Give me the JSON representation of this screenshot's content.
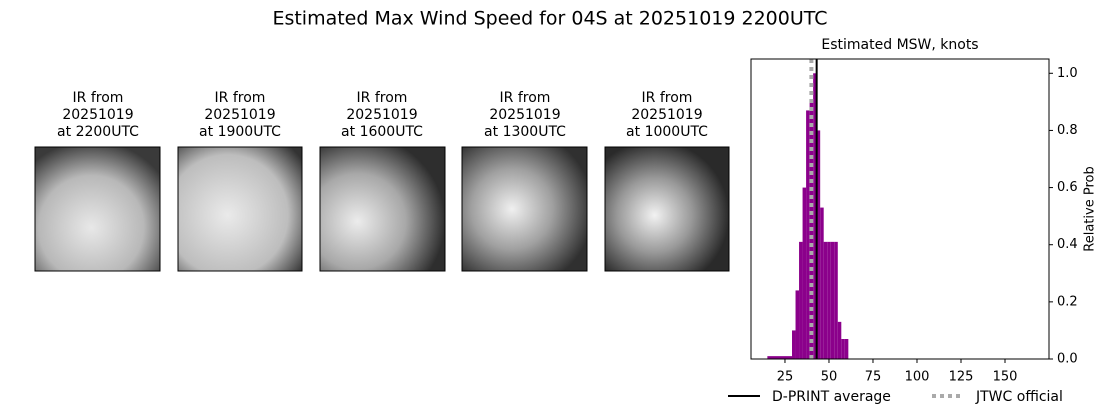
{
  "title": "Estimated Max Wind Speed for 04S at 20251019 2200UTC",
  "panels": [
    {
      "lines": [
        "IR from",
        "20251019",
        "at 2200UTC"
      ]
    },
    {
      "lines": [
        "IR from",
        "20251019",
        "at 1900UTC"
      ]
    },
    {
      "lines": [
        "IR from",
        "20251019",
        "at 1600UTC"
      ]
    },
    {
      "lines": [
        "IR from",
        "20251019",
        "at 1300UTC"
      ]
    },
    {
      "lines": [
        "IR from",
        "20251019",
        "at 1000UTC"
      ]
    }
  ],
  "chart_data": {
    "type": "histogram",
    "title": "Estimated MSW, knots",
    "ylabel": "Relative Prob",
    "bins": [
      15,
      29,
      31,
      33,
      35,
      37,
      39,
      41,
      43,
      45,
      47,
      49,
      51,
      53,
      55,
      57,
      59,
      61
    ],
    "values": [
      0.01,
      0.1,
      0.24,
      0.41,
      0.6,
      0.87,
      0.91,
      1.0,
      0.8,
      0.53,
      0.41,
      0.41,
      0.41,
      0.41,
      0.13,
      0.07,
      0.07
    ],
    "color": "#8b008b",
    "xlim": [
      5.7,
      175
    ],
    "xticks": [
      25,
      50,
      75,
      100,
      125,
      150
    ],
    "ylim": [
      0,
      1.05
    ],
    "yticks": [
      {
        "value": 0,
        "label": "0.0"
      },
      0.2,
      0.4,
      0.6,
      0.8,
      {
        "value": 1,
        "label": "1.0"
      }
    ],
    "reference_lines": [
      {
        "name": "D-PRINT average",
        "value": 43,
        "color": "#000000",
        "style": "solid"
      },
      {
        "name": "JTWC official",
        "value": 40,
        "color": "#aaaaaa",
        "style": "dotted"
      }
    ]
  }
}
